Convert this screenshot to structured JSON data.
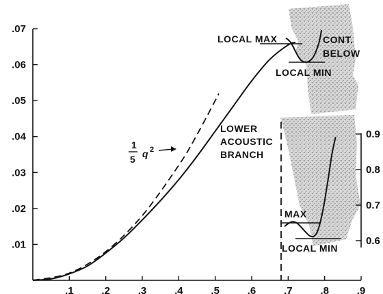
{
  "chart_data": [
    {
      "type": "line",
      "title": "",
      "xlabel": "",
      "ylabel": "",
      "xlim": [
        0,
        0.9
      ],
      "ylim": [
        0,
        0.07
      ],
      "x_ticks": [
        ".1",
        ".2",
        ".3",
        ".4",
        ".5",
        ".6",
        ".7",
        ".8",
        ".9"
      ],
      "y_ticks": [
        ".01",
        ".02",
        ".03",
        ".04",
        ".05",
        ".06",
        ".07"
      ],
      "series": [
        {
          "name": "LOWER ACOUSTIC BRANCH",
          "style": "solid",
          "x": [
            0,
            0.05,
            0.1,
            0.15,
            0.2,
            0.25,
            0.3,
            0.35,
            0.4,
            0.45,
            0.5,
            0.55,
            0.6,
            0.65,
            0.7,
            0.72
          ],
          "y": [
            0,
            0.0004,
            0.0018,
            0.004,
            0.0076,
            0.0118,
            0.0168,
            0.0222,
            0.028,
            0.0345,
            0.0415,
            0.0485,
            0.0555,
            0.0615,
            0.0655,
            0.0662
          ]
        },
        {
          "name": "1/5 q²",
          "style": "dashed",
          "x": [
            0,
            0.1,
            0.2,
            0.3,
            0.4,
            0.45,
            0.5,
            0.51
          ],
          "y": [
            0,
            0.002,
            0.008,
            0.018,
            0.032,
            0.0405,
            0.05,
            0.052
          ]
        }
      ],
      "annotations": {
        "q_label_top": "1",
        "q_label_bottom": "5",
        "q_label_var": "q",
        "q_label_exp": "2",
        "branch_line1": "LOWER",
        "branch_line2": "ACOUSTIC",
        "branch_line3": "BRANCH",
        "local_max": "LOCAL MAX",
        "local_min_upper": "LOCAL MIN",
        "cont_line1": "CONT.",
        "cont_line2": "BELOW"
      }
    },
    {
      "type": "line",
      "title": "",
      "note": "inset detail, right axis",
      "ylim": [
        0.55,
        0.9
      ],
      "y_ticks": [
        "0.9",
        "0.8",
        "0.7",
        "0.6"
      ],
      "series": [
        {
          "name": "LOWER ACOUSTIC BRANCH (continued)",
          "x": [
            0.69,
            0.7,
            0.71,
            0.72,
            0.73,
            0.74,
            0.75,
            0.76,
            0.77,
            0.78,
            0.79,
            0.8,
            0.81,
            0.82,
            0.83
          ],
          "y": [
            0.64,
            0.648,
            0.653,
            0.652,
            0.644,
            0.633,
            0.622,
            0.613,
            0.612,
            0.625,
            0.66,
            0.712,
            0.776,
            0.843,
            0.892
          ]
        }
      ],
      "annotations": {
        "max": "MAX",
        "local_min": "LOCAL MIN"
      }
    }
  ]
}
